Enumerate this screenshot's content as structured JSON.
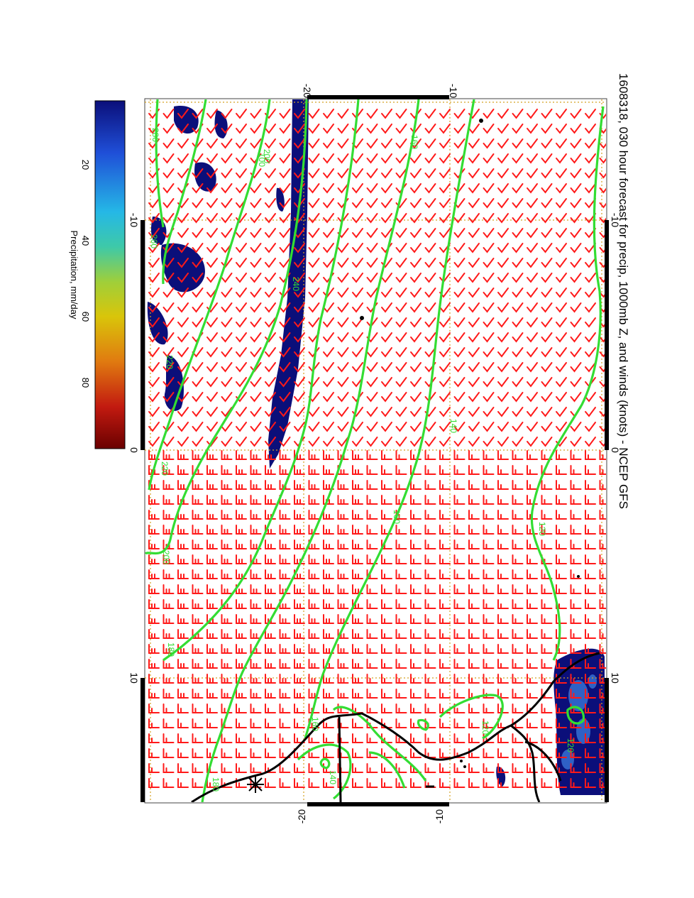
{
  "map": {
    "title": "1608318, 030 hour forecast for precip, 1000mb Z, and winds (knots) - NCEP GFS",
    "top_axis_ticks": [
      "-20",
      "-10"
    ],
    "bottom_axis_ticks": [
      "-20",
      "-10"
    ],
    "left_axis_ticks": [
      "-10",
      "0",
      "10"
    ],
    "right_axis_ticks": [
      "-10",
      "0",
      "10"
    ],
    "contour_labels": [
      "280",
      "220",
      "200",
      "180",
      "160",
      "160",
      "140",
      "120",
      "120",
      "200",
      "220",
      "260",
      "240",
      "180",
      "160",
      "140",
      "120",
      "100"
    ],
    "colors": {
      "contour": "#33dd33",
      "wind_barb": "#ff1a1a",
      "precip_blob": "#0b0f7a",
      "coastline": "#000000",
      "grid": "#d4a020"
    }
  },
  "colorbar": {
    "label": "Precipitation, mm/day",
    "ticks": [
      "20",
      "40",
      "60",
      "80"
    ],
    "stops": [
      "#0b0f7a",
      "#1f4fd8",
      "#25b8e6",
      "#3ec9a8",
      "#9fcf3a",
      "#d9c50a",
      "#e07a10",
      "#c21a10",
      "#6a0000"
    ]
  }
}
